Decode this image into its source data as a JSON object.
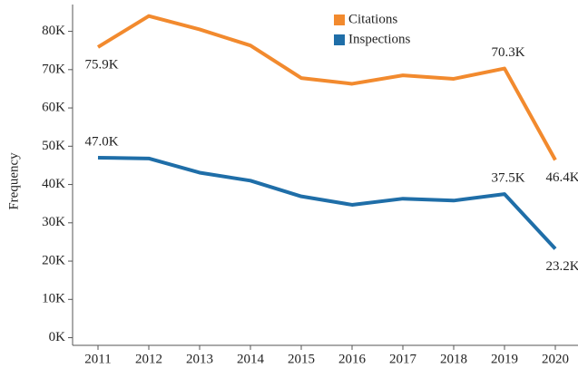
{
  "chart_data": {
    "type": "line",
    "y_label": "Frequency",
    "categories": [
      "2011",
      "2012",
      "2013",
      "2014",
      "2015",
      "2016",
      "2017",
      "2018",
      "2019",
      "2020"
    ],
    "series": [
      {
        "name": "Citations",
        "color": "#f28a2e",
        "values": [
          75900,
          84000,
          80500,
          76300,
          67800,
          66300,
          68500,
          67600,
          70300,
          46400
        ],
        "value_labels": [
          "75.9K",
          null,
          null,
          null,
          null,
          null,
          null,
          null,
          "70.3K",
          "46.4K"
        ]
      },
      {
        "name": "Inspections",
        "color": "#1f6ea8",
        "values": [
          47000,
          46800,
          43100,
          41000,
          36900,
          34700,
          36300,
          35800,
          37500,
          23200
        ],
        "value_labels": [
          "47.0K",
          null,
          null,
          null,
          null,
          null,
          null,
          null,
          "37.5K",
          "23.2K"
        ]
      }
    ],
    "ylim": [
      -2000,
      87000
    ],
    "yticks": [
      {
        "value": 0,
        "label": "0K"
      },
      {
        "value": 10000,
        "label": "10K"
      },
      {
        "value": 20000,
        "label": "20K"
      },
      {
        "value": 30000,
        "label": "30K"
      },
      {
        "value": 40000,
        "label": "40K"
      },
      {
        "value": 50000,
        "label": "50K"
      },
      {
        "value": 60000,
        "label": "60K"
      },
      {
        "value": 70000,
        "label": "70K"
      },
      {
        "value": 80000,
        "label": "80K"
      }
    ],
    "legend": "top"
  }
}
